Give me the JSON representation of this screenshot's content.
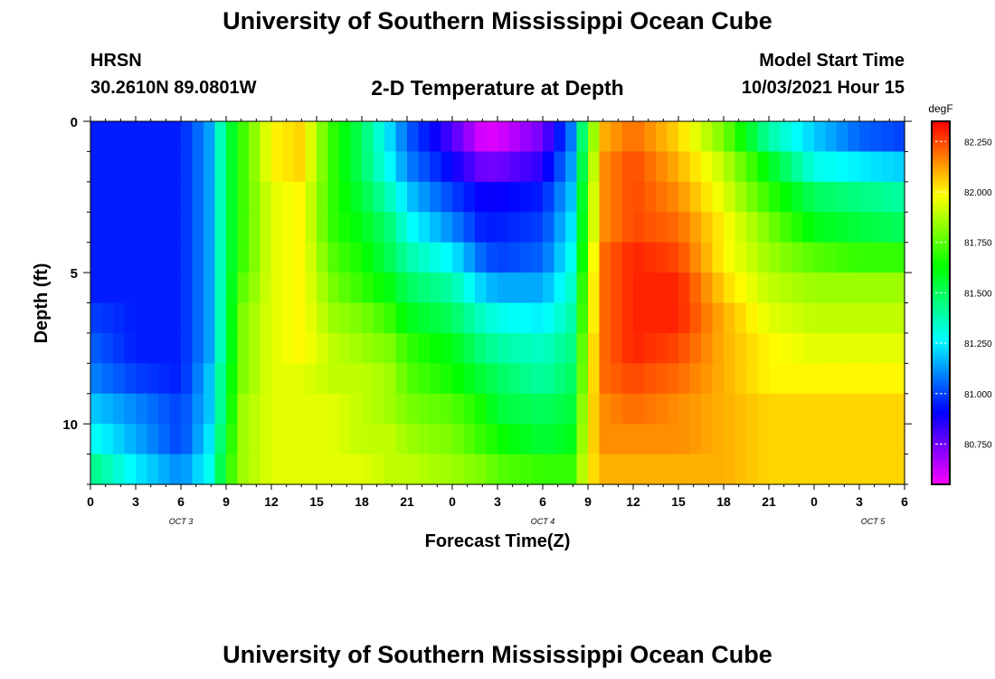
{
  "header": {
    "title": "University of Southern Mississippi Ocean Cube",
    "station": "HRSN",
    "coordinates": "30.2610N  89.0801W",
    "subtitle": "2-D Temperature at Depth",
    "model_start_label": "Model Start Time",
    "model_start_value": "10/03/2021 Hour 15"
  },
  "footer": {
    "title": "University of Southern Mississippi Ocean Cube"
  },
  "chart_data": {
    "type": "heatmap",
    "title": "2-D Temperature at Depth",
    "xlabel": "Forecast Time(Z)",
    "ylabel": "Depth (ft)",
    "x_tick_labels": [
      "0",
      "3",
      "6",
      "9",
      "12",
      "15",
      "18",
      "21",
      "0",
      "3",
      "6",
      "9",
      "12",
      "15",
      "18",
      "21",
      "0",
      "3",
      "6"
    ],
    "date_labels": [
      "OCT 3",
      "OCT 4",
      "OCT 5"
    ],
    "x_range_hours": [
      0,
      54
    ],
    "y_tick_labels": [
      "0",
      "5",
      "10"
    ],
    "ylim_ft": [
      0,
      12
    ],
    "y_inverted": true,
    "colorbar": {
      "unit": "degF",
      "tick_labels": [
        "82.250",
        "82.000",
        "81.750",
        "81.500",
        "81.250",
        "81.000",
        "80.750"
      ],
      "tick_values": [
        82.25,
        82.0,
        81.75,
        81.5,
        81.25,
        81.0,
        80.75
      ],
      "range": [
        80.55,
        82.35
      ]
    },
    "x_hours": [
      0,
      3,
      6,
      8,
      9,
      10,
      12,
      14,
      16,
      18,
      20,
      21,
      24,
      26,
      27,
      30,
      32,
      33,
      34,
      36,
      39,
      42,
      45,
      48,
      51,
      54
    ],
    "depths_ft": [
      0.5,
      1.5,
      2.5,
      3.5,
      4.5,
      5.5,
      6.5,
      7.5,
      8.5,
      9.5,
      10.5,
      11.5
    ],
    "temperature_degF": [
      [
        80.95,
        80.95,
        80.95,
        81.15,
        81.5,
        81.7,
        82.0,
        82.05,
        81.7,
        81.5,
        81.2,
        81.05,
        80.8,
        80.6,
        80.6,
        80.75,
        81.1,
        81.7,
        82.1,
        82.2,
        82.05,
        81.8,
        81.4,
        81.2,
        81.05,
        81.0
      ],
      [
        80.95,
        80.95,
        80.95,
        81.15,
        81.5,
        81.7,
        82.0,
        82.05,
        81.7,
        81.5,
        81.25,
        81.1,
        80.9,
        80.75,
        80.75,
        80.85,
        81.15,
        81.75,
        82.15,
        82.25,
        82.1,
        81.9,
        81.6,
        81.3,
        81.25,
        81.2
      ],
      [
        80.95,
        80.95,
        80.95,
        81.15,
        81.5,
        81.7,
        81.95,
        82.0,
        81.7,
        81.55,
        81.35,
        81.2,
        81.0,
        80.9,
        80.9,
        80.95,
        81.2,
        81.8,
        82.15,
        82.25,
        82.15,
        81.95,
        81.7,
        81.5,
        81.45,
        81.4
      ],
      [
        80.95,
        80.95,
        80.95,
        81.15,
        81.5,
        81.7,
        81.95,
        82.0,
        81.7,
        81.6,
        81.45,
        81.3,
        81.1,
        80.95,
        80.95,
        81.0,
        81.25,
        81.8,
        82.15,
        82.25,
        82.2,
        82.0,
        81.8,
        81.6,
        81.55,
        81.5
      ],
      [
        80.95,
        80.95,
        80.95,
        81.15,
        81.5,
        81.7,
        81.95,
        82.0,
        81.75,
        81.65,
        81.5,
        81.4,
        81.25,
        81.05,
        81.0,
        81.05,
        81.3,
        81.85,
        82.2,
        82.3,
        82.25,
        82.0,
        81.85,
        81.75,
        81.7,
        81.7
      ],
      [
        80.95,
        80.95,
        80.95,
        81.15,
        81.5,
        81.75,
        81.95,
        82.0,
        81.8,
        81.7,
        81.6,
        81.5,
        81.4,
        81.2,
        81.15,
        81.15,
        81.35,
        81.9,
        82.2,
        82.3,
        82.3,
        82.05,
        81.9,
        81.85,
        81.85,
        81.85
      ],
      [
        81.0,
        80.95,
        80.95,
        81.15,
        81.5,
        81.8,
        81.95,
        82.0,
        81.85,
        81.8,
        81.7,
        81.6,
        81.5,
        81.35,
        81.3,
        81.25,
        81.4,
        81.9,
        82.2,
        82.3,
        82.3,
        82.1,
        81.95,
        81.9,
        81.9,
        81.9
      ],
      [
        81.05,
        80.95,
        80.95,
        81.15,
        81.5,
        81.8,
        81.95,
        82.0,
        81.9,
        81.85,
        81.8,
        81.7,
        81.6,
        81.45,
        81.4,
        81.35,
        81.45,
        81.95,
        82.2,
        82.3,
        82.25,
        82.1,
        82.0,
        81.95,
        81.95,
        81.95
      ],
      [
        81.1,
        81.0,
        80.95,
        81.2,
        81.55,
        81.8,
        81.95,
        81.95,
        81.9,
        81.9,
        81.85,
        81.75,
        81.65,
        81.55,
        81.5,
        81.4,
        81.5,
        81.95,
        82.2,
        82.25,
        82.2,
        82.1,
        82.0,
        82.0,
        82.0,
        82.0
      ],
      [
        81.2,
        81.1,
        81.0,
        81.2,
        81.55,
        81.85,
        81.95,
        81.95,
        81.95,
        81.9,
        81.85,
        81.8,
        81.75,
        81.65,
        81.55,
        81.5,
        81.55,
        82.0,
        82.15,
        82.2,
        82.15,
        82.1,
        82.05,
        82.05,
        82.05,
        82.05
      ],
      [
        81.3,
        81.15,
        81.0,
        81.25,
        81.6,
        81.85,
        81.95,
        81.95,
        81.95,
        81.9,
        81.9,
        81.85,
        81.8,
        81.7,
        81.65,
        81.55,
        81.6,
        82.0,
        82.15,
        82.15,
        82.15,
        82.1,
        82.05,
        82.05,
        82.05,
        82.05
      ],
      [
        81.45,
        81.25,
        81.1,
        81.3,
        81.65,
        81.85,
        81.95,
        81.95,
        81.95,
        81.95,
        81.9,
        81.9,
        81.85,
        81.8,
        81.75,
        81.7,
        81.7,
        82.0,
        82.1,
        82.1,
        82.1,
        82.1,
        82.05,
        82.05,
        82.05,
        82.05
      ]
    ]
  }
}
